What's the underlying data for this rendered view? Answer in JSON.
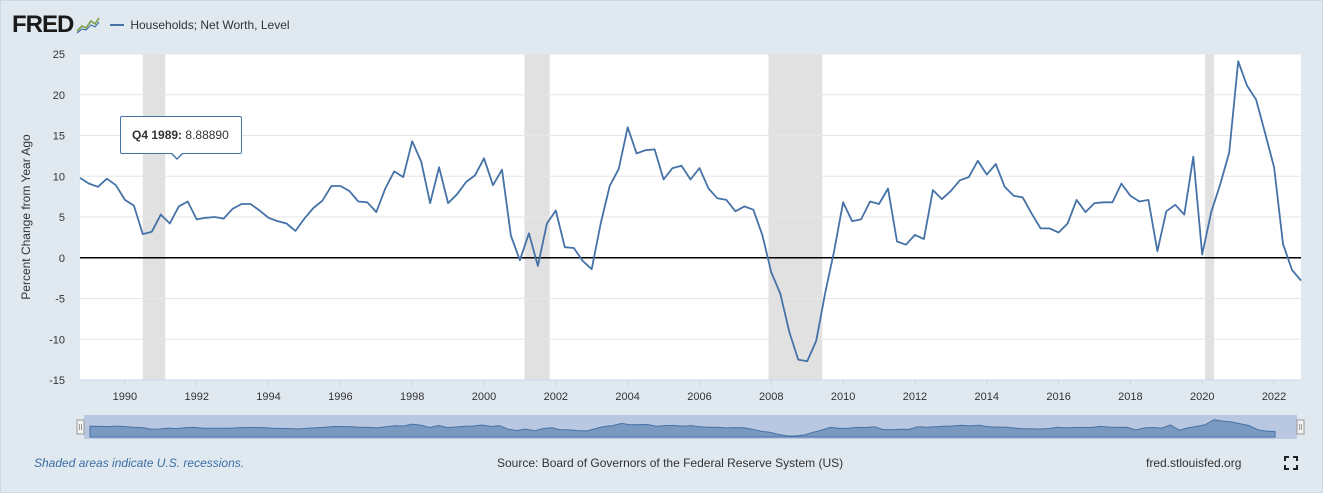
{
  "header": {
    "logo_text": "FRED",
    "logo_mark": "chart-line-icon"
  },
  "tooltip": {
    "label": "Q4 1989:",
    "value": "8.88890"
  },
  "footer": {
    "recession_note": "Shaded areas indicate U.S. recessions.",
    "source": "Source: Board of Governors of the Federal Reserve System (US)",
    "site": "fred.stlouisfed.org",
    "fullscreen_icon": "fullscreen-icon"
  },
  "colors": {
    "line": "#4572a7",
    "recession": "#e1e1e1",
    "zero_line": "#000000",
    "navigator_fill": "#b9c8e0"
  },
  "chart_data": {
    "type": "line",
    "title": "",
    "ylabel": "Percent Change from Year Ago",
    "xlabel": "",
    "ylim": [
      -15,
      25
    ],
    "y_ticks": [
      -15,
      -10,
      -5,
      0,
      5,
      10,
      15,
      20,
      25
    ],
    "x_ticks": [
      "1990",
      "1992",
      "1994",
      "1996",
      "1998",
      "2000",
      "2002",
      "2004",
      "2006",
      "2008",
      "2010",
      "2012",
      "2014",
      "2016",
      "2018",
      "2020",
      "2022"
    ],
    "xlim": [
      1988.75,
      2022.75
    ],
    "grid": true,
    "legend": "top-left",
    "recessions": [
      [
        1990.5,
        1991.125
      ],
      [
        2001.125,
        2001.83
      ],
      [
        2007.92,
        2009.42
      ],
      [
        2020.08,
        2020.33
      ]
    ],
    "series": [
      {
        "name": "Households; Net Worth, Level",
        "x": [
          1988.75,
          1989.0,
          1989.25,
          1989.5,
          1989.75,
          1990.0,
          1990.25,
          1990.5,
          1990.75,
          1991.0,
          1991.25,
          1991.5,
          1991.75,
          1992.0,
          1992.25,
          1992.5,
          1992.75,
          1993.0,
          1993.25,
          1993.5,
          1993.75,
          1994.0,
          1994.25,
          1994.5,
          1994.75,
          1995.0,
          1995.25,
          1995.5,
          1995.75,
          1996.0,
          1996.25,
          1996.5,
          1996.75,
          1997.0,
          1997.25,
          1997.5,
          1997.75,
          1998.0,
          1998.25,
          1998.5,
          1998.75,
          1999.0,
          1999.25,
          1999.5,
          1999.75,
          2000.0,
          2000.25,
          2000.5,
          2000.75,
          2001.0,
          2001.25,
          2001.5,
          2001.75,
          2002.0,
          2002.25,
          2002.5,
          2002.75,
          2003.0,
          2003.25,
          2003.5,
          2003.75,
          2004.0,
          2004.25,
          2004.5,
          2004.75,
          2005.0,
          2005.25,
          2005.5,
          2005.75,
          2006.0,
          2006.25,
          2006.5,
          2006.75,
          2007.0,
          2007.25,
          2007.5,
          2007.75,
          2008.0,
          2008.25,
          2008.5,
          2008.75,
          2009.0,
          2009.25,
          2009.5,
          2009.75,
          2010.0,
          2010.25,
          2010.5,
          2010.75,
          2011.0,
          2011.25,
          2011.5,
          2011.75,
          2012.0,
          2012.25,
          2012.5,
          2012.75,
          2013.0,
          2013.25,
          2013.5,
          2013.75,
          2014.0,
          2014.25,
          2014.5,
          2014.75,
          2015.0,
          2015.25,
          2015.5,
          2015.75,
          2016.0,
          2016.25,
          2016.5,
          2016.75,
          2017.0,
          2017.25,
          2017.5,
          2017.75,
          2018.0,
          2018.25,
          2018.5,
          2018.75,
          2019.0,
          2019.25,
          2019.5,
          2019.75,
          2020.0,
          2020.25,
          2020.5,
          2020.75,
          2021.0,
          2021.25,
          2021.5,
          2021.75,
          2022.0,
          2022.25,
          2022.5,
          2022.75
        ],
        "values": [
          9.8,
          9.1,
          8.7,
          9.7,
          8.9,
          7.1,
          6.4,
          2.9,
          3.2,
          5.3,
          4.2,
          6.3,
          6.9,
          4.7,
          4.9,
          5.0,
          4.8,
          6.0,
          6.6,
          6.6,
          5.8,
          4.9,
          4.5,
          4.2,
          3.3,
          4.8,
          6.1,
          7.0,
          8.8,
          8.8,
          8.2,
          6.9,
          6.8,
          5.6,
          8.5,
          10.6,
          9.9,
          14.3,
          11.8,
          6.7,
          11.1,
          6.7,
          7.8,
          9.3,
          10.1,
          12.2,
          8.9,
          10.8,
          2.7,
          -0.3,
          3.0,
          -1.0,
          4.2,
          5.8,
          1.3,
          1.2,
          -0.4,
          -1.4,
          4.2,
          8.8,
          10.9,
          16.0,
          12.8,
          13.2,
          13.3,
          9.6,
          11.0,
          11.3,
          9.6,
          11.0,
          8.5,
          7.3,
          7.1,
          5.7,
          6.3,
          5.9,
          2.8,
          -1.8,
          -4.4,
          -9.1,
          -12.5,
          -12.7,
          -10.2,
          -4.3,
          0.8,
          6.8,
          4.5,
          4.7,
          6.9,
          6.6,
          8.5,
          2.0,
          1.6,
          2.8,
          2.3,
          8.3,
          7.2,
          8.2,
          9.5,
          9.9,
          11.9,
          10.2,
          11.5,
          8.7,
          7.6,
          7.4,
          5.4,
          3.6,
          3.6,
          3.1,
          4.2,
          7.1,
          5.6,
          6.7,
          6.8,
          6.8,
          9.1,
          7.6,
          6.9,
          7.1,
          0.8,
          5.7,
          6.5,
          5.3,
          12.4,
          0.4,
          5.6,
          9.0,
          12.9,
          24.1,
          21.1,
          19.4,
          15.3,
          11.1,
          1.7,
          -1.5,
          -2.8
        ]
      }
    ]
  }
}
